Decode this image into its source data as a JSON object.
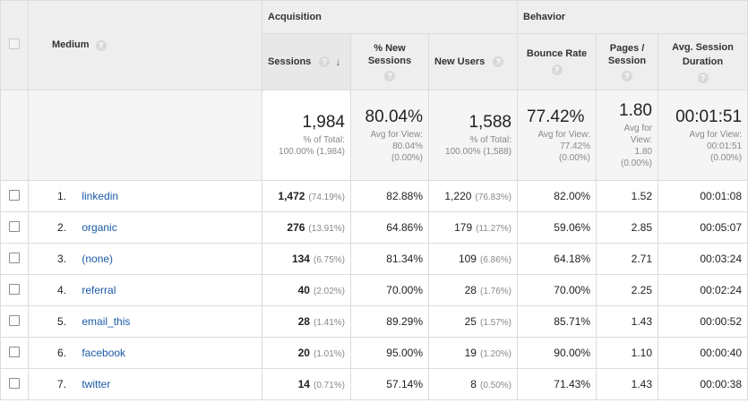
{
  "header": {
    "medium_label": "Medium",
    "acquisition_label": "Acquisition",
    "behavior_label": "Behavior",
    "columns": {
      "sessions": "Sessions",
      "pct_new_sessions": "% New Sessions",
      "new_users": "New Users",
      "bounce_rate": "Bounce Rate",
      "pages_session": "Pages / Session",
      "avg_session_duration": "Avg. Session Duration"
    },
    "help_glyph": "?",
    "sort_glyph": "↓"
  },
  "totals": {
    "sessions": {
      "value": "1,984",
      "sub1": "% of Total:",
      "sub2": "100.00% (1,984)"
    },
    "pct_new_sessions": {
      "value": "80.04%",
      "sub1": "Avg for View:",
      "sub2": "80.04%",
      "sub3": "(0.00%)"
    },
    "new_users": {
      "value": "1,588",
      "sub1": "% of Total:",
      "sub2": "100.00% (1,588)"
    },
    "bounce_rate": {
      "value": "77.42%",
      "sub1": "Avg for View:",
      "sub2": "77.42%",
      "sub3": "(0.00%)"
    },
    "pages_session": {
      "value": "1.80",
      "sub1": "Avg for",
      "sub2": "View:",
      "sub3": "1.80",
      "sub4": "(0.00%)"
    },
    "avg_session_duration": {
      "value": "00:01:51",
      "sub1": "Avg for View:",
      "sub2": "00:01:51",
      "sub3": "(0.00%)"
    }
  },
  "rows": [
    {
      "rank": "1.",
      "medium": "linkedin",
      "sessions": "1,472",
      "sessions_pct": "(74.19%)",
      "pct_new": "82.88%",
      "new_users": "1,220",
      "new_users_pct": "(76.83%)",
      "bounce": "82.00%",
      "pages": "1.52",
      "duration": "00:01:08"
    },
    {
      "rank": "2.",
      "medium": "organic",
      "sessions": "276",
      "sessions_pct": "(13.91%)",
      "pct_new": "64.86%",
      "new_users": "179",
      "new_users_pct": "(11.27%)",
      "bounce": "59.06%",
      "pages": "2.85",
      "duration": "00:05:07"
    },
    {
      "rank": "3.",
      "medium": "(none)",
      "sessions": "134",
      "sessions_pct": "(6.75%)",
      "pct_new": "81.34%",
      "new_users": "109",
      "new_users_pct": "(6.86%)",
      "bounce": "64.18%",
      "pages": "2.71",
      "duration": "00:03:24"
    },
    {
      "rank": "4.",
      "medium": "referral",
      "sessions": "40",
      "sessions_pct": "(2.02%)",
      "pct_new": "70.00%",
      "new_users": "28",
      "new_users_pct": "(1.76%)",
      "bounce": "70.00%",
      "pages": "2.25",
      "duration": "00:02:24"
    },
    {
      "rank": "5.",
      "medium": "email_this",
      "sessions": "28",
      "sessions_pct": "(1.41%)",
      "pct_new": "89.29%",
      "new_users": "25",
      "new_users_pct": "(1.57%)",
      "bounce": "85.71%",
      "pages": "1.43",
      "duration": "00:00:52"
    },
    {
      "rank": "6.",
      "medium": "facebook",
      "sessions": "20",
      "sessions_pct": "(1.01%)",
      "pct_new": "95.00%",
      "new_users": "19",
      "new_users_pct": "(1.20%)",
      "bounce": "90.00%",
      "pages": "1.10",
      "duration": "00:00:40"
    },
    {
      "rank": "7.",
      "medium": "twitter",
      "sessions": "14",
      "sessions_pct": "(0.71%)",
      "pct_new": "57.14%",
      "new_users": "8",
      "new_users_pct": "(0.50%)",
      "bounce": "71.43%",
      "pages": "1.43",
      "duration": "00:00:38"
    }
  ],
  "colors": {
    "link": "#1a5aa6",
    "header_bg": "#eeeeee",
    "totals_bg": "#f5f5f5",
    "border": "#dcdcdc"
  }
}
